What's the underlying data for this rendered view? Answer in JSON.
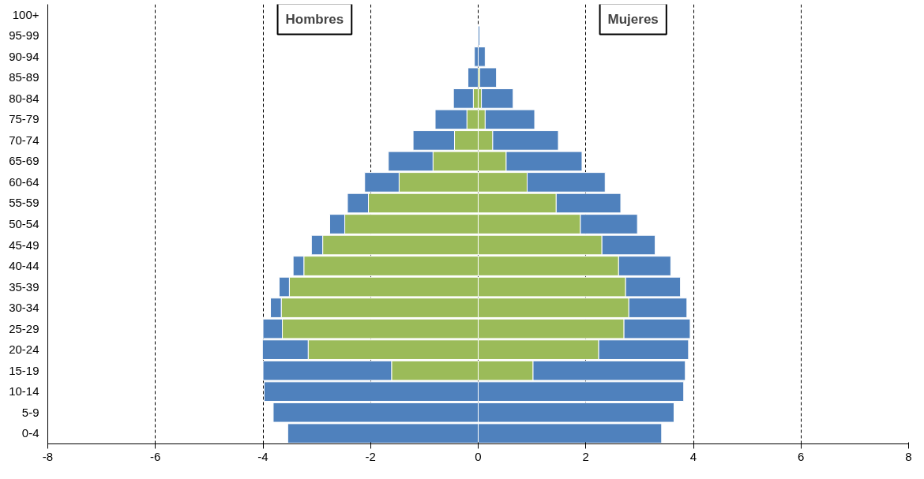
{
  "chart_data": {
    "type": "bar",
    "orientation": "horizontal",
    "stacked": true,
    "categories": [
      "100+",
      "95-99",
      "90-94",
      "85-89",
      "80-84",
      "75-79",
      "70-74",
      "65-69",
      "60-64",
      "55-59",
      "50-54",
      "45-49",
      "40-44",
      "35-39",
      "30-34",
      "25-29",
      "20-24",
      "15-19",
      "10-14",
      "5-9",
      "0-4"
    ],
    "series": [
      {
        "color": "#9bbb59",
        "values": [
          null,
          null,
          null,
          null,
          -0.09,
          -0.21,
          -0.44,
          -0.84,
          -1.47,
          -2.04,
          -2.48,
          -2.89,
          -3.24,
          -3.51,
          -3.66,
          -3.64,
          -3.16,
          -1.61,
          null,
          null,
          null
        ]
      },
      {
        "color": "#9bbb59",
        "values": [
          null,
          null,
          null,
          0.03,
          0.06,
          0.13,
          0.27,
          0.52,
          0.91,
          1.45,
          1.9,
          2.3,
          2.61,
          2.74,
          2.8,
          2.71,
          2.24,
          1.02,
          null,
          null,
          null
        ]
      },
      {
        "color": "#4f81bd",
        "values": [
          null,
          null,
          -0.07,
          -0.19,
          -0.37,
          -0.59,
          -0.77,
          -0.83,
          -0.64,
          -0.39,
          -0.28,
          -0.21,
          -0.2,
          -0.19,
          -0.2,
          -0.36,
          -0.85,
          -2.39,
          -3.98,
          -3.81,
          -3.54
        ]
      },
      {
        "color": "#4f81bd",
        "values": [
          null,
          0.03,
          0.13,
          0.31,
          0.59,
          0.92,
          1.22,
          1.41,
          1.45,
          1.2,
          1.06,
          0.99,
          0.97,
          1.02,
          1.08,
          1.23,
          1.67,
          2.83,
          3.82,
          3.64,
          3.41
        ]
      }
    ],
    "xlim": [
      -8,
      8
    ],
    "xticks": [
      -8,
      -6,
      -4,
      -2,
      0,
      2,
      4,
      6,
      8
    ],
    "grid": "x",
    "annotations": [
      "Hombres",
      "Mujeres"
    ]
  }
}
